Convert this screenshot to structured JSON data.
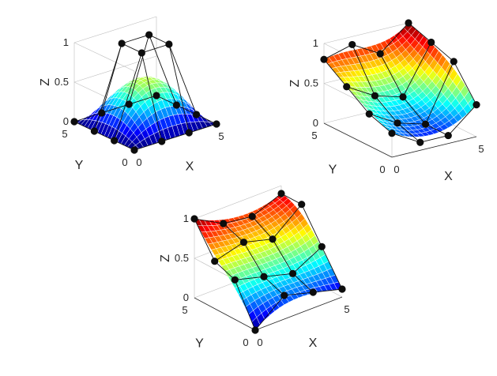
{
  "chart_data": [
    {
      "type": "surface",
      "xlabel": "X",
      "ylabel": "Y",
      "zlabel": "Z",
      "xlim": [
        0,
        5
      ],
      "ylim": [
        0,
        5
      ],
      "zlim": [
        0,
        1
      ],
      "xticks": [
        "0",
        "5"
      ],
      "yticks": [
        "0",
        "5"
      ],
      "zticks": [
        "0",
        "0.5",
        "1"
      ],
      "colormap": "jet",
      "grid": "on",
      "surface": "bicubic Bezier patch defined by a 4x4 control net",
      "control_points": [
        [
          [
            0,
            0,
            0
          ],
          [
            1.67,
            0,
            0
          ],
          [
            3.33,
            0,
            0
          ],
          [
            5,
            0,
            0
          ]
        ],
        [
          [
            0,
            1.67,
            0
          ],
          [
            1.67,
            1.67,
            1
          ],
          [
            3.33,
            1.67,
            1
          ],
          [
            5,
            1.67,
            0
          ]
        ],
        [
          [
            0,
            3.33,
            0
          ],
          [
            1.67,
            3.33,
            1
          ],
          [
            3.33,
            3.33,
            1
          ],
          [
            5,
            3.33,
            0
          ]
        ],
        [
          [
            0,
            5,
            0
          ],
          [
            1.67,
            5,
            0
          ],
          [
            3.33,
            5,
            0
          ],
          [
            5,
            5,
            0
          ]
        ]
      ]
    },
    {
      "type": "surface",
      "xlabel": "X",
      "ylabel": "Y",
      "zlabel": "Z",
      "xlim": [
        0,
        5
      ],
      "ylim": [
        0,
        5
      ],
      "zlim": [
        0,
        1
      ],
      "xticks": [
        "0",
        "5"
      ],
      "yticks": [
        "0",
        "5"
      ],
      "zticks": [
        "0",
        "0.5",
        "1"
      ],
      "colormap": "jet",
      "grid": "on",
      "surface": "bicubic Bezier patch defined by a 4x4 control net",
      "control_points": [
        [
          [
            0,
            0,
            0.3
          ],
          [
            1.67,
            0,
            0.1
          ],
          [
            3.33,
            0,
            0.1
          ],
          [
            5,
            0,
            0.4
          ]
        ],
        [
          [
            0,
            1.67,
            0.4
          ],
          [
            1.67,
            1.67,
            0.2
          ],
          [
            3.33,
            1.67,
            0.1
          ],
          [
            5,
            1.67,
            0.8
          ]
        ],
        [
          [
            0,
            3.33,
            0.6
          ],
          [
            1.67,
            3.33,
            0.4
          ],
          [
            3.33,
            3.33,
            0.3
          ],
          [
            5,
            3.33,
            0.9
          ]
        ],
        [
          [
            0,
            5,
            0.8
          ],
          [
            1.67,
            5,
            0.9
          ],
          [
            3.33,
            5,
            0.7
          ],
          [
            5,
            5,
            1
          ]
        ]
      ]
    },
    {
      "type": "surface",
      "xlabel": "X",
      "ylabel": "Y",
      "zlabel": "Z",
      "xlim": [
        0,
        5
      ],
      "ylim": [
        0,
        5
      ],
      "zlim": [
        0,
        1
      ],
      "xticks": [
        "0",
        "5"
      ],
      "yticks": [
        "0",
        "5"
      ],
      "zticks": [
        "0",
        "0.5",
        "1"
      ],
      "colormap": "jet",
      "grid": "on",
      "surface": "bicubic Bezier patch defined by a 4x4 control net",
      "control_points": [
        [
          [
            0,
            0,
            0
          ],
          [
            1.67,
            0,
            0.3
          ],
          [
            3.33,
            0,
            0.2
          ],
          [
            5,
            0,
            0.1
          ]
        ],
        [
          [
            0,
            1.67,
            0.5
          ],
          [
            1.67,
            1.67,
            0.4
          ],
          [
            3.33,
            1.67,
            0.3
          ],
          [
            5,
            1.67,
            0.5
          ]
        ],
        [
          [
            0,
            3.33,
            0.6
          ],
          [
            1.67,
            3.33,
            0.7
          ],
          [
            3.33,
            3.33,
            0.6
          ],
          [
            5,
            3.33,
            0.9
          ]
        ],
        [
          [
            0,
            5,
            1
          ],
          [
            1.67,
            5,
            0.8
          ],
          [
            3.33,
            5,
            0.75
          ],
          [
            5,
            5,
            0.9
          ]
        ]
      ]
    }
  ]
}
